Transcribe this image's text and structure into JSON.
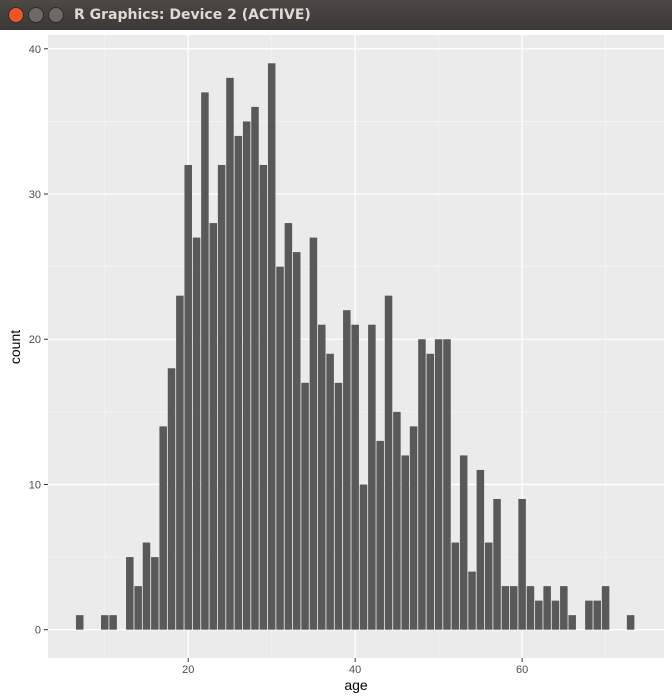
{
  "window": {
    "title": "R Graphics: Device 2 (ACTIVE)"
  },
  "chart_data": {
    "type": "bar",
    "x_label": "age",
    "y_label": "count",
    "x": [
      7,
      10,
      11,
      13,
      14,
      15,
      16,
      17,
      18,
      19,
      20,
      21,
      22,
      23,
      24,
      25,
      26,
      27,
      28,
      29,
      30,
      31,
      32,
      33,
      34,
      35,
      36,
      37,
      38,
      39,
      40,
      41,
      42,
      43,
      44,
      45,
      46,
      47,
      48,
      49,
      50,
      51,
      52,
      53,
      54,
      55,
      56,
      57,
      58,
      59,
      60,
      61,
      62,
      63,
      64,
      65,
      66,
      68,
      69,
      70,
      73
    ],
    "values": [
      1,
      1,
      1,
      5,
      3,
      6,
      5,
      14,
      18,
      23,
      32,
      27,
      37,
      28,
      32,
      38,
      34,
      35,
      36,
      32,
      39,
      25,
      28,
      26,
      17,
      27,
      21,
      19,
      17,
      22,
      21,
      10,
      21,
      13,
      23,
      15,
      12,
      14,
      20,
      19,
      20,
      20,
      6,
      12,
      4,
      11,
      6,
      9,
      3,
      3,
      9,
      3,
      2,
      3,
      2,
      3,
      1,
      2,
      2,
      3,
      1
    ],
    "color": "#595959",
    "xlim": [
      3.2,
      77
    ],
    "ylim": [
      -1.95,
      40.95
    ],
    "xticks": [
      20,
      40,
      60
    ],
    "yticks": [
      0,
      10,
      20,
      30,
      40
    ],
    "grid": true
  }
}
